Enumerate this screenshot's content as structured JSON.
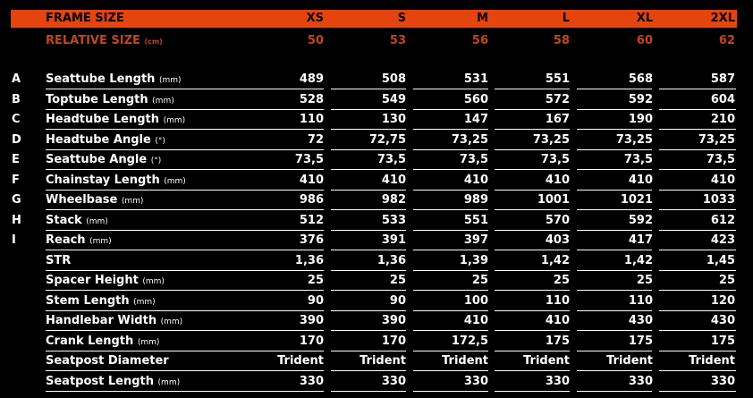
{
  "header": {
    "title": "FRAME SIZE",
    "sizes": [
      "XS",
      "S",
      "M",
      "L",
      "XL",
      "2XL"
    ]
  },
  "relative": {
    "label": "RELATIVE SIZE",
    "unit": "(cm)",
    "values": [
      "50",
      "53",
      "56",
      "58",
      "60",
      "62"
    ]
  },
  "rows": [
    {
      "letter": "A",
      "label": "Seattube Length",
      "unit": "(mm)",
      "values": [
        "489",
        "508",
        "531",
        "551",
        "568",
        "587"
      ]
    },
    {
      "letter": "B",
      "label": "Toptube Length",
      "unit": "(mm)",
      "values": [
        "528",
        "549",
        "560",
        "572",
        "592",
        "604"
      ]
    },
    {
      "letter": "C",
      "label": "Headtube Length",
      "unit": "(mm)",
      "values": [
        "110",
        "130",
        "147",
        "167",
        "190",
        "210"
      ]
    },
    {
      "letter": "D",
      "label": "Headtube Angle",
      "unit": "(°)",
      "values": [
        "72",
        "72,75",
        "73,25",
        "73,25",
        "73,25",
        "73,25"
      ]
    },
    {
      "letter": "E",
      "label": "Seattube Angle",
      "unit": "(°)",
      "values": [
        "73,5",
        "73,5",
        "73,5",
        "73,5",
        "73,5",
        "73,5"
      ]
    },
    {
      "letter": "F",
      "label": "Chainstay Length",
      "unit": "(mm)",
      "values": [
        "410",
        "410",
        "410",
        "410",
        "410",
        "410"
      ]
    },
    {
      "letter": "G",
      "label": "Wheelbase",
      "unit": "(mm)",
      "values": [
        "986",
        "982",
        "989",
        "1001",
        "1021",
        "1033"
      ]
    },
    {
      "letter": "H",
      "label": "Stack",
      "unit": "(mm)",
      "values": [
        "512",
        "533",
        "551",
        "570",
        "592",
        "612"
      ]
    },
    {
      "letter": "I",
      "label": "Reach",
      "unit": "(mm)",
      "values": [
        "376",
        "391",
        "397",
        "403",
        "417",
        "423"
      ]
    },
    {
      "letter": "",
      "label": "STR",
      "unit": "",
      "values": [
        "1,36",
        "1,36",
        "1,39",
        "1,42",
        "1,42",
        "1,45"
      ]
    },
    {
      "letter": "",
      "label": "Spacer Height",
      "unit": "(mm)",
      "values": [
        "25",
        "25",
        "25",
        "25",
        "25",
        "25"
      ]
    },
    {
      "letter": "",
      "label": "Stem Length",
      "unit": "(mm)",
      "values": [
        "90",
        "90",
        "100",
        "110",
        "110",
        "120"
      ]
    },
    {
      "letter": "",
      "label": "Handlebar Width",
      "unit": "(mm)",
      "values": [
        "390",
        "390",
        "410",
        "410",
        "430",
        "430"
      ]
    },
    {
      "letter": "",
      "label": "Crank Length",
      "unit": "(mm)",
      "values": [
        "170",
        "170",
        "172,5",
        "175",
        "175",
        "175"
      ]
    },
    {
      "letter": "",
      "label": "Seatpost Diameter",
      "unit": "",
      "values": [
        "Trident",
        "Trident",
        "Trident",
        "Trident",
        "Trident",
        "Trident"
      ]
    },
    {
      "letter": "",
      "label": "Seatpost Length",
      "unit": "(mm)",
      "values": [
        "330",
        "330",
        "330",
        "330",
        "330",
        "330"
      ]
    }
  ],
  "colors": {
    "header_bg": "#e4450e",
    "relative_text": "#c0471b",
    "background": "#000000",
    "text": "#ffffff"
  }
}
